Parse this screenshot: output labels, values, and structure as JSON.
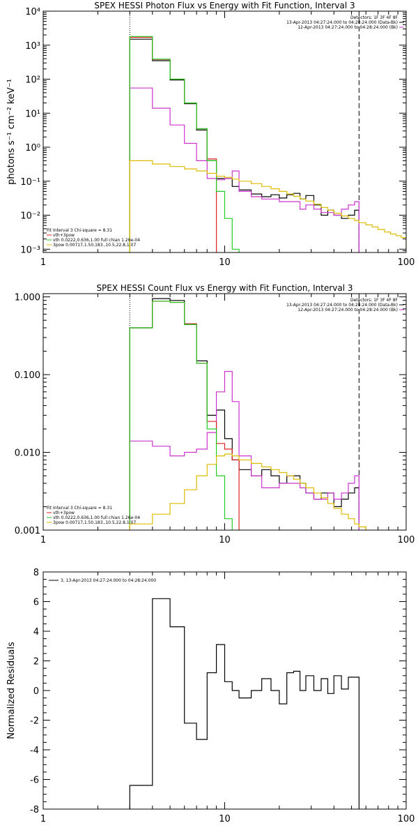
{
  "chart_data": [
    {
      "type": "line",
      "title": "SPEX HESSI Photon Flux vs Energy with Fit Function, Interval 3",
      "xlabel": "",
      "ylabel": "photons s⁻¹ cm⁻² keV⁻¹",
      "xscale": "log",
      "yscale": "log",
      "xlim": [
        1,
        100
      ],
      "ylim": [
        0.0008,
        10000
      ],
      "xticks": [
        "1",
        "10",
        "100"
      ],
      "yticks": [
        "10⁻³",
        "10⁻²",
        "10⁻¹",
        "10⁰",
        "10¹",
        "10²",
        "10³",
        "10⁴"
      ],
      "info_top": [
        "Detectors: 1F 3F 4F 8F",
        "13-Apr-2013 04:27:24.000 to 04:28:24.000 (Data-Bk)",
        "12-Apr-2013 04:27:24.000 to 04:28:24.000 (Bk)"
      ],
      "info_bottom": [
        "Fit Interval 3   Chi-square = 8.31",
        "vth+3pow",
        "vth 0.0222,0.636,1.00  full chian 1.26e-04",
        "3pow 0.00717,1.50,183.,10.5,22.8,1.07"
      ],
      "vlines": [
        {
          "x": 3,
          "style": "dotted"
        },
        {
          "x": 55,
          "style": "dashed"
        }
      ],
      "bin_edges": [
        3,
        4,
        5,
        6,
        7,
        8,
        9,
        10,
        11,
        12,
        14,
        16,
        18,
        20,
        22,
        24,
        26,
        28,
        31,
        34,
        37,
        40,
        44,
        48,
        52,
        55
      ],
      "series": [
        {
          "name": "Data-Bk",
          "color": "#000000",
          "values": [
            1500,
            350,
            95,
            19,
            3.2,
            0.4,
            0.12,
            0.12,
            0.07,
            0.055,
            0.042,
            0.035,
            0.04,
            0.032,
            0.04,
            0.044,
            0.03,
            0.038,
            0.02,
            0.01,
            0.014,
            0.01,
            0.008,
            0.01,
            0.014
          ]
        },
        {
          "name": "Bk",
          "color": "#cc33cc",
          "values": [
            55,
            14,
            4.5,
            1.3,
            0.4,
            0.12,
            0.11,
            0.12,
            0.2,
            0.05,
            0.035,
            0.03,
            0.03,
            0.025,
            0.025,
            0.025,
            0.015,
            0.02,
            0.015,
            0.012,
            0.012,
            0.01,
            0.015,
            0.02,
            0.025
          ]
        },
        {
          "name": "vth+3pow",
          "color": "#dd2222",
          "values": [
            1700,
            380,
            100,
            20,
            3.5,
            0.45
          ]
        },
        {
          "name": "vth",
          "color": "#22cc22",
          "values": [
            1800,
            390,
            100,
            20,
            3.5,
            0.4,
            0.05,
            0.008,
            0.001
          ]
        },
        {
          "name": "3pow",
          "color": "#ddbb00",
          "values": [
            0.4,
            0.32,
            0.27,
            0.23,
            0.2,
            0.17,
            0.14,
            0.13,
            0.115,
            0.1,
            0.085,
            0.07,
            0.06,
            0.05,
            0.042,
            0.036,
            0.03,
            0.026,
            0.021,
            0.017,
            0.014,
            0.0115,
            0.0095,
            0.008,
            0.007,
            0.006,
            0.0052,
            0.0045,
            0.0038,
            0.0032,
            0.0028,
            0.0025,
            0.0022
          ],
          "edges": [
            3,
            4,
            5,
            6,
            7,
            8,
            9,
            10,
            11,
            12,
            14,
            16,
            18,
            20,
            22,
            24,
            26,
            28,
            31,
            34,
            37,
            40,
            44,
            48,
            52,
            55,
            60,
            65,
            70,
            76,
            82,
            88,
            94,
            100
          ]
        }
      ]
    },
    {
      "type": "line",
      "title": "SPEX HESSI Count Flux vs Energy with Fit Function, Interval 3",
      "xlabel": "",
      "ylabel": "",
      "xscale": "log",
      "yscale": "log",
      "xlim": [
        1,
        100
      ],
      "ylim": [
        0.001,
        1.1
      ],
      "xticks": [
        "1",
        "10",
        "100"
      ],
      "yticks": [
        "0.001",
        "0.010",
        "0.100",
        "1.000"
      ],
      "info_top": [
        "Detectors: 1F 3F 4F 8F",
        "13-Apr-2013 04:27:24.000 to 04:28:24.000 (Data-Bk)",
        "12-Apr-2013 04:27:24.000 to 04:28:24.000 (Bk)"
      ],
      "info_bottom": [
        "Fit Interval 3   Chi-square = 8.31",
        "vth+3pow",
        "vth 0.0222,0.636,1.00  full chian 1.26e-04",
        "3pow 0.00717,1.50,183.,10.5,22.8,1.07"
      ],
      "vlines": [
        {
          "x": 3,
          "style": "dotted"
        },
        {
          "x": 55,
          "style": "dashed"
        }
      ],
      "bin_edges": [
        3,
        4,
        5,
        6,
        7,
        8,
        9,
        10,
        11,
        12,
        14,
        16,
        18,
        20,
        22,
        24,
        26,
        28,
        31,
        34,
        37,
        40,
        44,
        48,
        52,
        55
      ],
      "series": [
        {
          "name": "Data-Bk",
          "color": "#000000",
          "values": [
            0.4,
            0.95,
            0.9,
            0.45,
            0.15,
            0.03,
            0.035,
            0.015,
            0.008,
            0.006,
            0.005,
            0.006,
            0.005,
            0.004,
            0.005,
            0.005,
            0.004,
            0.003,
            0.0025,
            0.003,
            0.003,
            0.002,
            0.0025,
            0.003,
            0.0035
          ]
        },
        {
          "name": "Bk",
          "color": "#cc33cc",
          "values": [
            0.014,
            0.012,
            0.009,
            0.01,
            0.011,
            0.018,
            0.06,
            0.11,
            0.045,
            0.009,
            0.005,
            0.0035,
            0.0035,
            0.004,
            0.004,
            0.004,
            0.0035,
            0.003,
            0.0025,
            0.0025,
            0.003,
            0.0025,
            0.003,
            0.004,
            0.005
          ]
        },
        {
          "name": "vth+3pow",
          "color": "#dd2222",
          "values": [
            0.4,
            0.88,
            0.85,
            0.45,
            0.14,
            0.025,
            0.013,
            0.011,
            0.008
          ]
        },
        {
          "name": "vth",
          "color": "#22cc22",
          "values": [
            0.4,
            0.88,
            0.85,
            0.44,
            0.14,
            0.02,
            0.005,
            0.0014,
            0.0009
          ]
        },
        {
          "name": "3pow",
          "color": "#ddbb00",
          "values": [
            0.0012,
            0.0016,
            0.0022,
            0.0033,
            0.005,
            0.007,
            0.009,
            0.0095,
            0.009,
            0.008,
            0.0072,
            0.0065,
            0.006,
            0.0055,
            0.005,
            0.0045,
            0.004,
            0.0035,
            0.003,
            0.0026,
            0.0022,
            0.0019,
            0.0016,
            0.0014,
            0.0012,
            0.0011,
            0.0009
          ],
          "edges": [
            3,
            4,
            5,
            6,
            7,
            8,
            9,
            10,
            11,
            12,
            14,
            16,
            18,
            20,
            22,
            24,
            26,
            28,
            31,
            34,
            37,
            40,
            44,
            48,
            52,
            55,
            60,
            65
          ]
        }
      ]
    },
    {
      "type": "line",
      "title": "",
      "xlabel": "",
      "ylabel": "Normalized Residuals",
      "xscale": "log",
      "yscale": "linear",
      "xlim": [
        1,
        100
      ],
      "ylim": [
        -8,
        8
      ],
      "xticks": [
        "1",
        "10",
        "100"
      ],
      "yticks": [
        "-8",
        "-6",
        "-4",
        "-2",
        "0",
        "2",
        "4",
        "6",
        "8"
      ],
      "legend": "3, 13-Apr-2013 04:27:24.000 to 04:28:24.000",
      "bin_edges": [
        3,
        4,
        5,
        6,
        7,
        8,
        9,
        10,
        11,
        12,
        14,
        16,
        18,
        20,
        22,
        24,
        26,
        28,
        31,
        34,
        37,
        40,
        44,
        48,
        52,
        55
      ],
      "series": [
        {
          "name": "3, 13-Apr-2013 04:27:24.000 to 04:28:24.000",
          "color": "#000000",
          "values": [
            -6.4,
            6.2,
            4.3,
            -2.2,
            -3.3,
            1.2,
            3.1,
            0.6,
            0.0,
            -0.5,
            0.0,
            0.8,
            0.0,
            -0.9,
            1.2,
            1.3,
            0.0,
            1.0,
            0.0,
            0.8,
            -0.2,
            1.0,
            0.1,
            0.9,
            0.9
          ]
        }
      ]
    }
  ]
}
